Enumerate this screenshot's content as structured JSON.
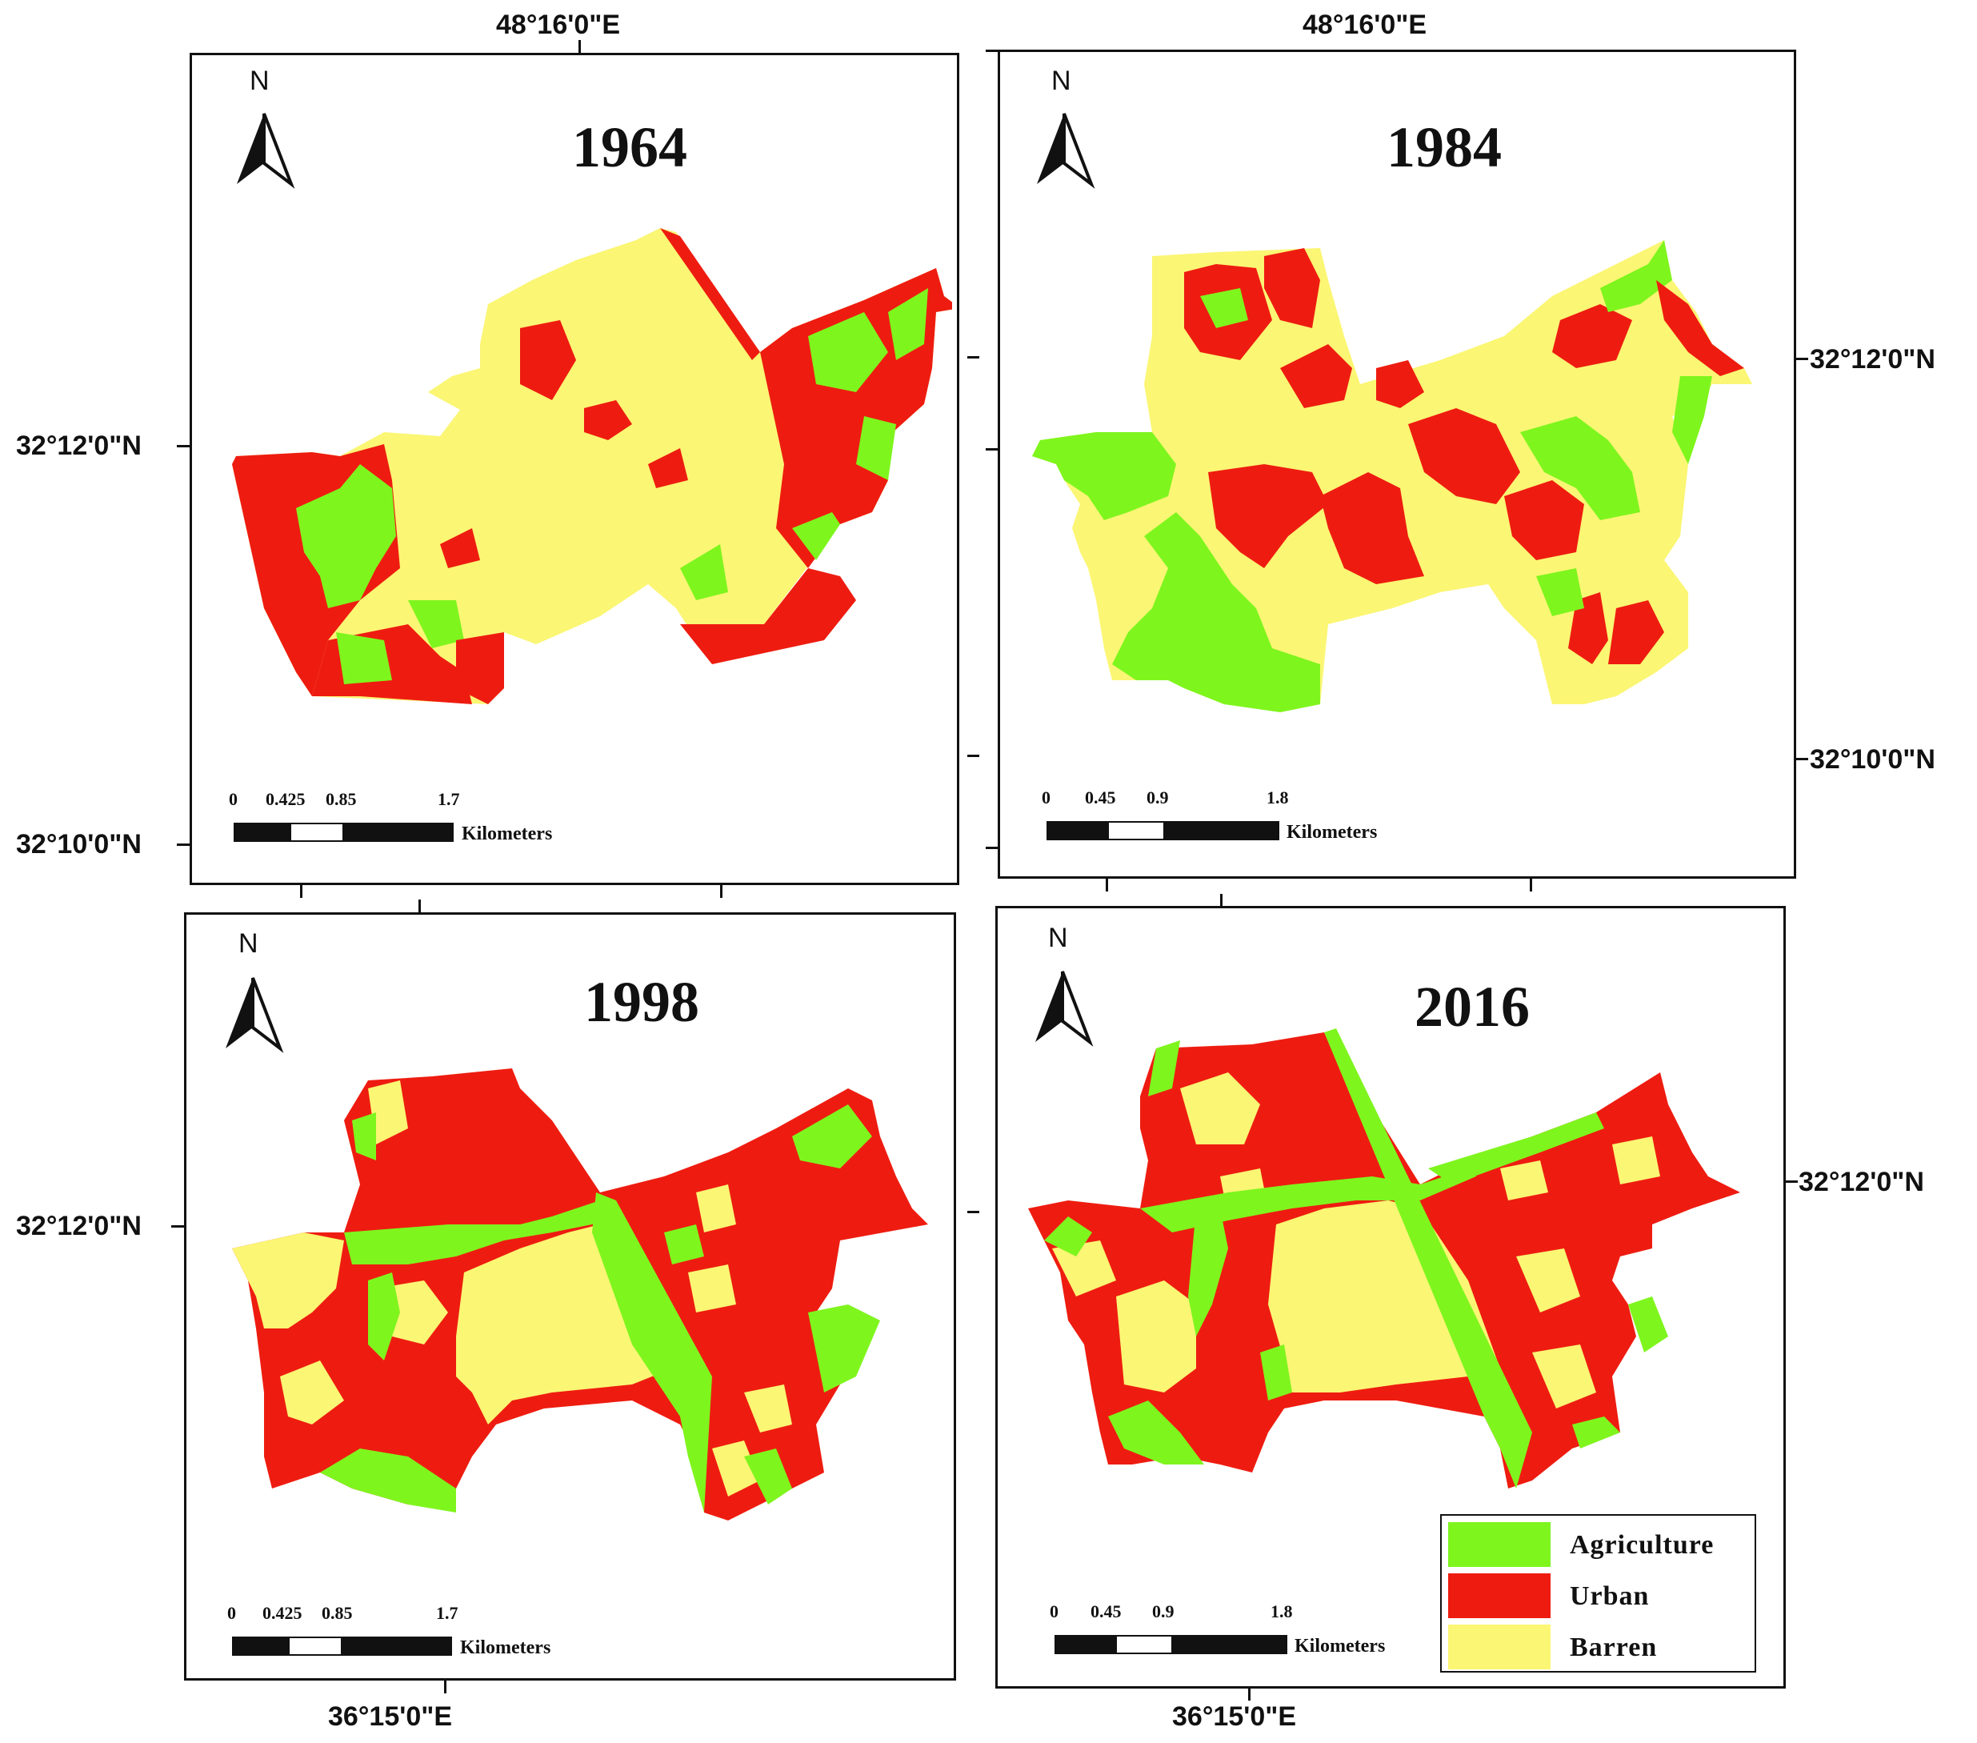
{
  "colors": {
    "agriculture": "#7ff51e",
    "urban": "#ee1c10",
    "barren": "#fbf674",
    "frame": "#111111"
  },
  "north_label": "N",
  "north_icon": "north-arrow-icon",
  "panels": [
    {
      "year": "1964",
      "top_coord": "48°16'0\"E",
      "left_coords": [
        "32°12'0\"N",
        "32°10'0\"N"
      ],
      "scale": {
        "ticks": [
          "0",
          "0.425",
          "0.85",
          "1.7"
        ],
        "unit": "Kilometers"
      }
    },
    {
      "year": "1984",
      "top_coord": "48°16'0\"E",
      "right_coords": [
        "32°12'0\"N",
        "32°10'0\"N"
      ],
      "scale": {
        "ticks": [
          "0",
          "0.45",
          "0.9",
          "1.8"
        ],
        "unit": "Kilometers"
      }
    },
    {
      "year": "1998",
      "left_coords": [
        "32°12'0\"N"
      ],
      "bottom_coord": "36°15'0\"E",
      "scale": {
        "ticks": [
          "0",
          "0.425",
          "0.85",
          "1.7"
        ],
        "unit": "Kilometers"
      }
    },
    {
      "year": "2016",
      "right_coords": [
        "32°12'0\"N"
      ],
      "bottom_coord": "36°15'0\"E",
      "scale": {
        "ticks": [
          "0",
          "0.45",
          "0.9",
          "1.8"
        ],
        "unit": "Kilometers"
      }
    }
  ],
  "legend": [
    {
      "label": "Agriculture",
      "color": "#7ff51e"
    },
    {
      "label": "Urban",
      "color": "#ee1c10"
    },
    {
      "label": "Barren",
      "color": "#fbf674"
    }
  ]
}
